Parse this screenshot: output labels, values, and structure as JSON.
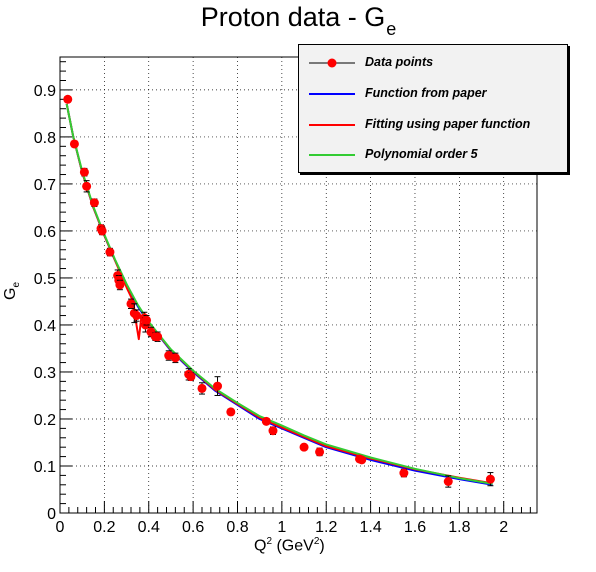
{
  "chart_data": {
    "type": "scatter",
    "title": "Proton data - G",
    "title_subscript": "e",
    "xlabel": "Q",
    "xlabel_sup": "2",
    "xlabel_unit": "(GeV",
    "xlabel_unit_sup": "2",
    "xlabel_close": ")",
    "ylabel": "G",
    "ylabel_sub": "e",
    "xlim": [
      0,
      2.15
    ],
    "ylim": [
      0,
      0.97
    ],
    "xticks": [
      0,
      0.2,
      0.4,
      0.6,
      0.8,
      1,
      1.2,
      1.4,
      1.6,
      1.8,
      2
    ],
    "xtick_labels": [
      "0",
      "0.2",
      "0.4",
      "0.6",
      "0.8",
      "1",
      "1.2",
      "1.4",
      "1.6",
      "1.8",
      "2"
    ],
    "yticks": [
      0,
      0.1,
      0.2,
      0.3,
      0.4,
      0.5,
      0.6,
      0.7,
      0.8,
      0.9
    ],
    "ytick_labels": [
      "0",
      "0.1",
      "0.2",
      "0.3",
      "0.4",
      "0.5",
      "0.6",
      "0.7",
      "0.8",
      "0.9"
    ],
    "grid": true,
    "legend_position": "top-right",
    "series": [
      {
        "name": "Data points",
        "kind": "points",
        "color": "#ff0000",
        "x": [
          0.035,
          0.065,
          0.11,
          0.12,
          0.155,
          0.185,
          0.19,
          0.225,
          0.26,
          0.265,
          0.27,
          0.32,
          0.335,
          0.345,
          0.38,
          0.385,
          0.39,
          0.41,
          0.43,
          0.44,
          0.49,
          0.52,
          0.58,
          0.59,
          0.64,
          0.71,
          0.77,
          0.93,
          0.96,
          1.1,
          1.17,
          1.35,
          1.36,
          1.55,
          1.75,
          1.94
        ],
        "y": [
          0.88,
          0.785,
          0.725,
          0.695,
          0.66,
          0.605,
          0.6,
          0.555,
          0.505,
          0.495,
          0.485,
          0.445,
          0.425,
          0.42,
          0.415,
          0.4,
          0.41,
          0.385,
          0.375,
          0.375,
          0.335,
          0.33,
          0.295,
          0.29,
          0.265,
          0.27,
          0.215,
          0.195,
          0.175,
          0.14,
          0.13,
          0.115,
          0.113,
          0.085,
          0.067,
          0.072
        ],
        "yerr": [
          0.006,
          0.006,
          0.008,
          0.012,
          0.008,
          0.008,
          0.008,
          0.008,
          0.012,
          0.01,
          0.01,
          0.01,
          0.02,
          0.012,
          0.012,
          0.015,
          0.01,
          0.01,
          0.008,
          0.01,
          0.01,
          0.01,
          0.012,
          0.008,
          0.012,
          0.02,
          0.006,
          0.006,
          0.008,
          0.006,
          0.008,
          0.006,
          0.006,
          0.008,
          0.012,
          0.014
        ]
      },
      {
        "name": "Function from paper",
        "kind": "line",
        "color": "#0000ff",
        "x": [
          0.03,
          0.06,
          0.1,
          0.15,
          0.2,
          0.25,
          0.3,
          0.35,
          0.4,
          0.45,
          0.5,
          0.6,
          0.7,
          0.8,
          0.9,
          1.0,
          1.1,
          1.2,
          1.4,
          1.6,
          1.8,
          1.95
        ],
        "y": [
          0.87,
          0.8,
          0.725,
          0.65,
          0.59,
          0.535,
          0.485,
          0.44,
          0.405,
          0.375,
          0.345,
          0.3,
          0.26,
          0.23,
          0.2,
          0.18,
          0.16,
          0.14,
          0.113,
          0.09,
          0.072,
          0.06
        ]
      },
      {
        "name": "Fitting using paper function",
        "kind": "line",
        "color": "#ff0000",
        "x": [
          0.03,
          0.06,
          0.1,
          0.15,
          0.2,
          0.25,
          0.3,
          0.33,
          0.345,
          0.355,
          0.365,
          0.38,
          0.4,
          0.45,
          0.5,
          0.6,
          0.7,
          0.8,
          0.9,
          1.0,
          1.1,
          1.2,
          1.4,
          1.6,
          1.8,
          1.95
        ],
        "y": [
          0.87,
          0.8,
          0.725,
          0.65,
          0.59,
          0.535,
          0.48,
          0.45,
          0.4,
          0.37,
          0.41,
          0.425,
          0.405,
          0.376,
          0.347,
          0.302,
          0.262,
          0.232,
          0.203,
          0.182,
          0.162,
          0.142,
          0.116,
          0.093,
          0.075,
          0.063
        ]
      },
      {
        "name": "Polynomial order 5",
        "kind": "line",
        "color": "#33cc33",
        "x": [
          0.03,
          0.06,
          0.1,
          0.15,
          0.2,
          0.25,
          0.3,
          0.35,
          0.4,
          0.45,
          0.5,
          0.6,
          0.7,
          0.8,
          0.9,
          1.0,
          1.1,
          1.2,
          1.4,
          1.6,
          1.8,
          1.95
        ],
        "y": [
          0.87,
          0.8,
          0.727,
          0.652,
          0.592,
          0.537,
          0.487,
          0.443,
          0.407,
          0.377,
          0.348,
          0.303,
          0.264,
          0.234,
          0.206,
          0.186,
          0.165,
          0.146,
          0.118,
          0.094,
          0.074,
          0.062
        ]
      }
    ]
  }
}
